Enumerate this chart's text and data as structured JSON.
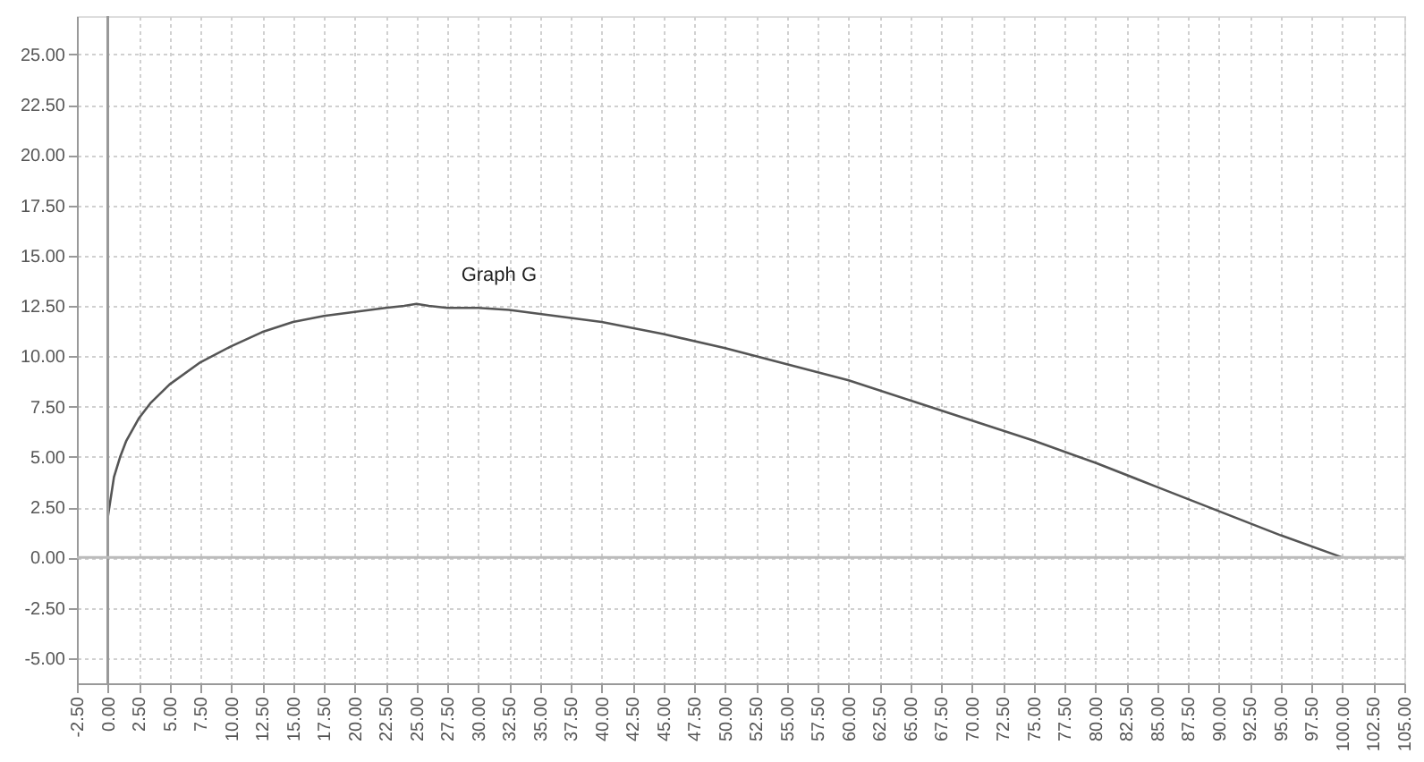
{
  "chart_data": {
    "type": "line",
    "x": [
      0,
      0.5,
      1,
      1.5,
      2.5,
      3.5,
      5,
      7.5,
      10,
      12.5,
      15,
      17.5,
      20,
      22.5,
      24,
      25,
      26,
      27.5,
      30,
      32.5,
      35,
      37.5,
      40,
      45,
      50,
      55,
      60,
      65,
      70,
      75,
      80,
      85,
      90,
      95,
      100
    ],
    "series": [
      {
        "name": "Graph G",
        "color": "#555555",
        "values": [
          2.0,
          4.0,
          5.0,
          5.8,
          6.9,
          7.7,
          8.6,
          9.7,
          10.5,
          11.2,
          11.7,
          12.0,
          12.2,
          12.4,
          12.5,
          12.6,
          12.5,
          12.4,
          12.4,
          12.3,
          12.1,
          11.9,
          11.7,
          11.1,
          10.4,
          9.6,
          8.8,
          7.8,
          6.8,
          5.8,
          4.7,
          3.5,
          2.3,
          1.1,
          0.0
        ]
      }
    ],
    "xlim": [
      -2.5,
      105
    ],
    "ylim": [
      -6.25,
      26.9
    ],
    "xticks": [
      {
        "value": -2.5,
        "label": "-2.50"
      },
      {
        "value": 0,
        "label": "0.00"
      },
      {
        "value": 2.5,
        "label": "2.50"
      },
      {
        "value": 5,
        "label": "5.00"
      },
      {
        "value": 7.5,
        "label": "7.50"
      },
      {
        "value": 10,
        "label": "10.00"
      },
      {
        "value": 12.5,
        "label": "12.50"
      },
      {
        "value": 15,
        "label": "15.00"
      },
      {
        "value": 17.5,
        "label": "17.50"
      },
      {
        "value": 20,
        "label": "20.00"
      },
      {
        "value": 22.5,
        "label": "22.50"
      },
      {
        "value": 25,
        "label": "25.00"
      },
      {
        "value": 27.5,
        "label": "27.50"
      },
      {
        "value": 30,
        "label": "30.00"
      },
      {
        "value": 32.5,
        "label": "32.50"
      },
      {
        "value": 35,
        "label": "35.00"
      },
      {
        "value": 37.5,
        "label": "37.50"
      },
      {
        "value": 40,
        "label": "40.00"
      },
      {
        "value": 42.5,
        "label": "42.50"
      },
      {
        "value": 45,
        "label": "45.00"
      },
      {
        "value": 47.5,
        "label": "47.50"
      },
      {
        "value": 50,
        "label": "50.00"
      },
      {
        "value": 52.5,
        "label": "52.50"
      },
      {
        "value": 55,
        "label": "55.00"
      },
      {
        "value": 57.5,
        "label": "57.50"
      },
      {
        "value": 60,
        "label": "60.00"
      },
      {
        "value": 62.5,
        "label": "62.50"
      },
      {
        "value": 65,
        "label": "65.00"
      },
      {
        "value": 67.5,
        "label": "67.50"
      },
      {
        "value": 70,
        "label": "70.00"
      },
      {
        "value": 72.5,
        "label": "72.50"
      },
      {
        "value": 75,
        "label": "75.00"
      },
      {
        "value": 77.5,
        "label": "77.50"
      },
      {
        "value": 80,
        "label": "80.00"
      },
      {
        "value": 82.5,
        "label": "82.50"
      },
      {
        "value": 85,
        "label": "85.00"
      },
      {
        "value": 87.5,
        "label": "87.50"
      },
      {
        "value": 90,
        "label": "90.00"
      },
      {
        "value": 92.5,
        "label": "92.50"
      },
      {
        "value": 95,
        "label": "95.00"
      },
      {
        "value": 97.5,
        "label": "97.50"
      },
      {
        "value": 100,
        "label": "100.00"
      },
      {
        "value": 102.5,
        "label": "102.50"
      },
      {
        "value": 105,
        "label": "105.00"
      }
    ],
    "yticks": [
      {
        "value": -5,
        "label": "-5.00"
      },
      {
        "value": -2.5,
        "label": "-2.50"
      },
      {
        "value": 0,
        "label": "0.00"
      },
      {
        "value": 2.5,
        "label": "2.50"
      },
      {
        "value": 5,
        "label": "5.00"
      },
      {
        "value": 7.5,
        "label": "7.50"
      },
      {
        "value": 10,
        "label": "10.00"
      },
      {
        "value": 12.5,
        "label": "12.50"
      },
      {
        "value": 15,
        "label": "15.00"
      },
      {
        "value": 17.5,
        "label": "17.50"
      },
      {
        "value": 20,
        "label": "20.00"
      },
      {
        "value": 22.5,
        "label": "22.50"
      },
      {
        "value": 25,
        "label": "25.00"
      }
    ],
    "ref_lines": [
      {
        "axis": "x",
        "value": 0,
        "color": "#999999"
      },
      {
        "axis": "y",
        "value": 0,
        "color": "#bbbbbb"
      }
    ],
    "grid": true,
    "marker": "none",
    "line_style": "solid"
  }
}
